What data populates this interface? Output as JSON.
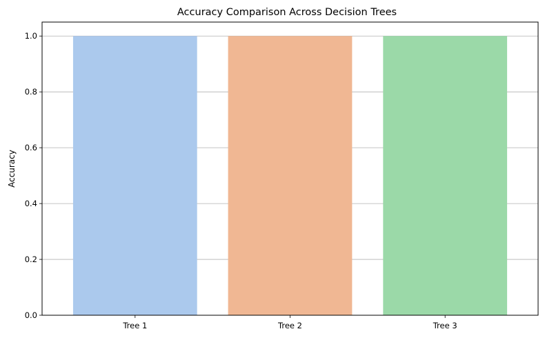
{
  "chart_data": {
    "type": "bar",
    "title": "Accuracy Comparison Across Decision Trees",
    "xlabel": "",
    "ylabel": "Accuracy",
    "categories": [
      "Tree 1",
      "Tree 2",
      "Tree 3"
    ],
    "values": [
      1.0,
      1.0,
      1.0
    ],
    "colors": [
      "#abc9ed",
      "#f0b793",
      "#9bd9a8"
    ],
    "ylim": [
      0,
      1.05
    ],
    "yticks": [
      "0.0",
      "0.2",
      "0.4",
      "0.6",
      "0.8",
      "1.0"
    ],
    "grid": "y",
    "legend": "none"
  }
}
